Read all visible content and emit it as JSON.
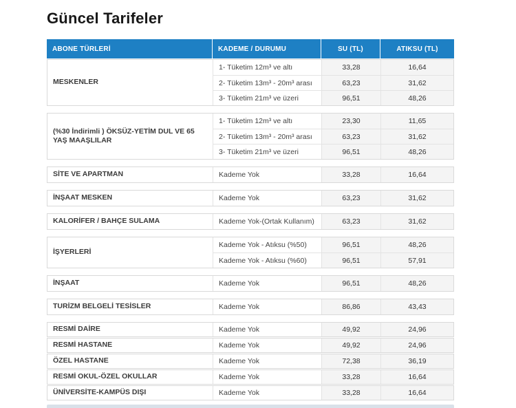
{
  "page": {
    "title": "Güncel Tarifeler"
  },
  "colors": {
    "header_bg": "#1e80c4",
    "header_text": "#ffffff",
    "value_cell_bg": "#f4f4f4",
    "section_border": "#d9d9d9",
    "bottom_strip": "#d9e1e9"
  },
  "table": {
    "columns": [
      "ABONE TÜRLERİ",
      "KADEME / DURUMU",
      "SU (TL)",
      "ATIKSU (TL)"
    ],
    "sections": [
      {
        "label": "MESKENLER",
        "rows": [
          {
            "kademe": "1- Tüketim 12m³ ve altı",
            "su": "33,28",
            "atiksu": "16,64"
          },
          {
            "kademe": "2- Tüketim 13m³ - 20m³ arası",
            "su": "63,23",
            "atiksu": "31,62"
          },
          {
            "kademe": "3- Tüketim 21m³ ve üzeri",
            "su": "96,51",
            "atiksu": "48,26"
          }
        ]
      },
      {
        "label": "(%30 İndirimli ) ÖKSÜZ-YETİM DUL VE 65 YAŞ MAAŞLILAR",
        "rows": [
          {
            "kademe": "1- Tüketim 12m³ ve altı",
            "su": "23,30",
            "atiksu": "11,65"
          },
          {
            "kademe": "2- Tüketim 13m³ - 20m³ arası",
            "su": "63,23",
            "atiksu": "31,62"
          },
          {
            "kademe": "3- Tüketim 21m³ ve üzeri",
            "su": "96,51",
            "atiksu": "48,26"
          }
        ]
      },
      {
        "label": "SİTE VE APARTMAN",
        "rows": [
          {
            "kademe": "Kademe Yok",
            "su": "33,28",
            "atiksu": "16,64"
          }
        ]
      },
      {
        "label": "İNŞAAT MESKEN",
        "rows": [
          {
            "kademe": "Kademe Yok",
            "su": "63,23",
            "atiksu": "31,62"
          }
        ]
      },
      {
        "label": "KALORİFER / BAHÇE SULAMA",
        "rows": [
          {
            "kademe": "Kademe Yok-(Ortak Kullanım)",
            "su": "63,23",
            "atiksu": "31,62"
          }
        ]
      },
      {
        "label": "İŞYERLERİ",
        "rows": [
          {
            "kademe": "Kademe Yok - Atıksu (%50)",
            "su": "96,51",
            "atiksu": "48,26"
          },
          {
            "kademe": "Kademe Yok - Atıksu (%60)",
            "su": "96,51",
            "atiksu": "57,91"
          }
        ]
      },
      {
        "label": "İNŞAAT",
        "rows": [
          {
            "kademe": "Kademe Yok",
            "su": "96,51",
            "atiksu": "48,26"
          }
        ]
      },
      {
        "label": "TURİZM BELGELİ TESİSLER",
        "rows": [
          {
            "kademe": "Kademe Yok",
            "su": "86,86",
            "atiksu": "43,43"
          }
        ]
      },
      {
        "label": "RESMİ DAİRE",
        "compact": true,
        "rows": [
          {
            "kademe": "Kademe Yok",
            "su": "49,92",
            "atiksu": "24,96"
          }
        ]
      },
      {
        "label": "RESMİ HASTANE",
        "compact": true,
        "rows": [
          {
            "kademe": "Kademe Yok",
            "su": "49,92",
            "atiksu": "24,96"
          }
        ]
      },
      {
        "label": "ÖZEL HASTANE",
        "compact": true,
        "rows": [
          {
            "kademe": "Kademe Yok",
            "su": "72,38",
            "atiksu": "36,19"
          }
        ]
      },
      {
        "label": "RESMİ OKUL-ÖZEL OKULLAR",
        "compact": true,
        "rows": [
          {
            "kademe": "Kademe Yok",
            "su": "33,28",
            "atiksu": "16,64"
          }
        ]
      },
      {
        "label": "ÜNİVERSİTE-KAMPÜS DIŞI",
        "compact": true,
        "rows": [
          {
            "kademe": "Kademe Yok",
            "su": "33,28",
            "atiksu": "16,64"
          }
        ]
      }
    ]
  }
}
